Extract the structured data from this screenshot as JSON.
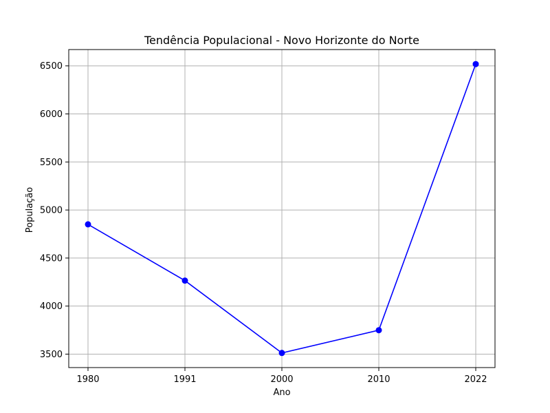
{
  "chart_data": {
    "type": "line",
    "title": "Tendência Populacional - Novo Horizonte do Norte",
    "xlabel": "Ano",
    "ylabel": "População",
    "categories": [
      "1980",
      "1991",
      "2000",
      "2010",
      "2022"
    ],
    "series": [
      {
        "values": [
          4851,
          4265,
          3512,
          3749,
          6519
        ],
        "color": "#0000ff",
        "marker": "circle"
      }
    ],
    "ylim": [
      3360,
      6670
    ],
    "yticks": [
      3500,
      4000,
      4500,
      5000,
      5500,
      6000,
      6500
    ],
    "grid": true
  }
}
